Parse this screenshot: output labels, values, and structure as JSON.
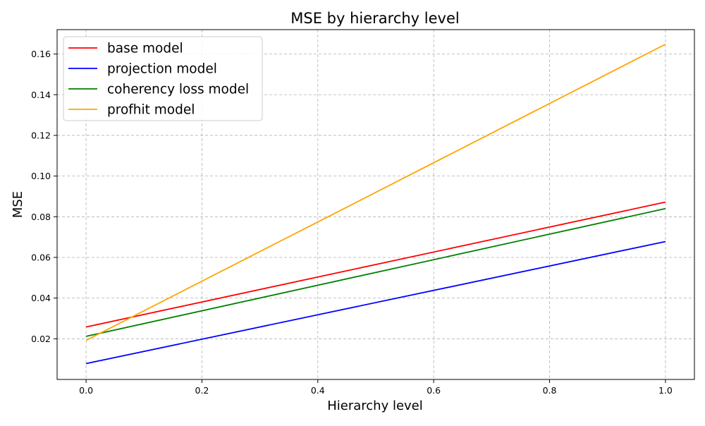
{
  "chart_data": {
    "type": "line",
    "title": "MSE by hierarchy level",
    "xlabel": "Hierarchy level",
    "ylabel": "MSE",
    "xlim": [
      -0.05,
      1.05
    ],
    "ylim": [
      0.0,
      0.172
    ],
    "xticks": [
      0.0,
      0.2,
      0.4,
      0.6,
      0.8,
      1.0
    ],
    "xtick_labels": [
      "0.0",
      "0.2",
      "0.4",
      "0.6",
      "0.8",
      "1.0"
    ],
    "yticks": [
      0.02,
      0.04,
      0.06,
      0.08,
      0.1,
      0.12,
      0.14,
      0.16
    ],
    "ytick_labels": [
      "0.02",
      "0.04",
      "0.06",
      "0.08",
      "0.10",
      "0.12",
      "0.14",
      "0.16"
    ],
    "grid": true,
    "legend_position": "top-left",
    "x": [
      0.0,
      1.0
    ],
    "series": [
      {
        "name": "base model",
        "color": "#ff0000",
        "values": [
          0.0258,
          0.0872
        ]
      },
      {
        "name": "projection model",
        "color": "#0000ff",
        "values": [
          0.0078,
          0.0678
        ]
      },
      {
        "name": "coherency loss model",
        "color": "#008000",
        "values": [
          0.0212,
          0.084
        ]
      },
      {
        "name": "profhit model",
        "color": "#ffa500",
        "values": [
          0.0192,
          0.1648
        ]
      }
    ]
  }
}
